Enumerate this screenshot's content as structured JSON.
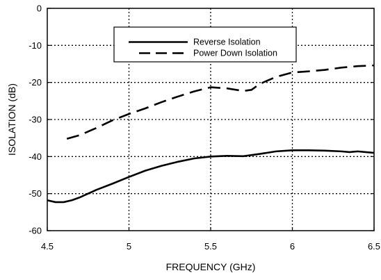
{
  "chart_data": {
    "type": "line",
    "title": "",
    "xlabel": "FREQUENCY (GHz)",
    "ylabel": "ISOLATION (dB)",
    "xlim": [
      4.5,
      6.5
    ],
    "ylim": [
      -60,
      0
    ],
    "xticks": [
      4.5,
      5,
      5.5,
      6,
      6.5
    ],
    "xtick_labels": [
      "4.5",
      "5",
      "5.5",
      "6",
      "6.5"
    ],
    "yticks": [
      0,
      -10,
      -20,
      -30,
      -40,
      -50,
      -60
    ],
    "ytick_labels": [
      "0",
      "-10",
      "-20",
      "-30",
      "-40",
      "-50",
      "-60"
    ],
    "grid": true,
    "legend_position": "top-center",
    "series": [
      {
        "name": "Reverse Isolation",
        "line_style": "solid",
        "color": "#000000",
        "x": [
          4.5,
          4.55,
          4.6,
          4.65,
          4.7,
          4.8,
          4.9,
          5.0,
          5.1,
          5.2,
          5.3,
          5.4,
          5.5,
          5.6,
          5.7,
          5.8,
          5.9,
          6.0,
          6.1,
          6.2,
          6.3,
          6.35,
          6.4,
          6.45,
          6.5
        ],
        "y": [
          -51.8,
          -52.3,
          -52.3,
          -51.8,
          -51.0,
          -49.0,
          -47.3,
          -45.5,
          -43.8,
          -42.5,
          -41.4,
          -40.5,
          -40.0,
          -39.8,
          -39.9,
          -39.3,
          -38.6,
          -38.3,
          -38.3,
          -38.4,
          -38.6,
          -38.8,
          -38.6,
          -38.8,
          -39.0
        ]
      },
      {
        "name": "Power Down Isolation",
        "line_style": "dashed",
        "color": "#000000",
        "x": [
          4.62,
          4.7,
          4.8,
          4.9,
          5.0,
          5.1,
          5.2,
          5.3,
          5.4,
          5.5,
          5.6,
          5.7,
          5.75,
          5.8,
          5.9,
          6.0,
          6.1,
          6.2,
          6.3,
          6.4,
          6.5
        ],
        "y": [
          -35.2,
          -34.2,
          -32.3,
          -30.2,
          -28.5,
          -27.0,
          -25.3,
          -23.8,
          -22.4,
          -21.3,
          -21.6,
          -22.3,
          -22.0,
          -20.4,
          -18.5,
          -17.3,
          -17.0,
          -16.6,
          -16.0,
          -15.6,
          -15.4
        ]
      }
    ]
  }
}
